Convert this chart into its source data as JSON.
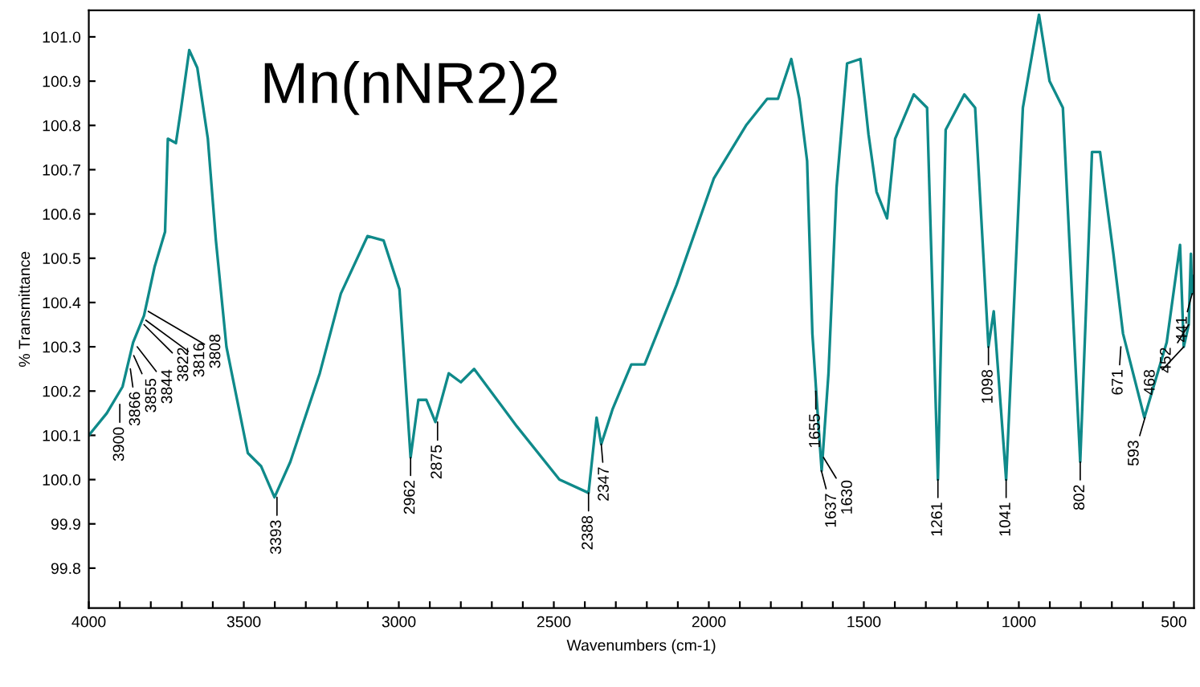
{
  "chart_data": {
    "type": "line",
    "title": "Mn(nNR2)2",
    "xlabel": "Wavenumbers (cm-1)",
    "ylabel": "% Transmittance",
    "xlim": [
      4000,
      435
    ],
    "ylim": [
      99.71,
      101.06
    ],
    "xticks": [
      4000,
      {
        "value": 3900,
        "label": null
      },
      {
        "value": 3800,
        "label": null
      },
      {
        "value": 3700,
        "label": null
      },
      {
        "value": 3600,
        "label": null
      },
      3500,
      {
        "value": 3400,
        "label": null
      },
      {
        "value": 3300,
        "label": null
      },
      {
        "value": 3200,
        "label": null
      },
      {
        "value": 3100,
        "label": null
      },
      3000,
      {
        "value": 2900,
        "label": null
      },
      {
        "value": 2800,
        "label": null
      },
      {
        "value": 2700,
        "label": null
      },
      {
        "value": 2600,
        "label": null
      },
      2500,
      {
        "value": 2400,
        "label": null
      },
      {
        "value": 2300,
        "label": null
      },
      {
        "value": 2200,
        "label": null
      },
      {
        "value": 2100,
        "label": null
      },
      2000,
      {
        "value": 1900,
        "label": null
      },
      {
        "value": 1800,
        "label": null
      },
      {
        "value": 1700,
        "label": null
      },
      {
        "value": 1600,
        "label": null
      },
      1500,
      {
        "value": 1400,
        "label": null
      },
      {
        "value": 1300,
        "label": null
      },
      {
        "value": 1200,
        "label": null
      },
      {
        "value": 1100,
        "label": null
      },
      1000,
      {
        "value": 900,
        "label": null
      },
      {
        "value": 800,
        "label": null
      },
      {
        "value": 700,
        "label": null
      },
      {
        "value": 600,
        "label": null
      },
      500
    ],
    "yticks": [
      {
        "value": 99.8,
        "label": "99.8"
      },
      {
        "value": 99.9,
        "label": "99.9"
      },
      {
        "value": 100.0,
        "label": "100.0"
      },
      {
        "value": 100.1,
        "label": "100.1"
      },
      {
        "value": 100.2,
        "label": "100.2"
      },
      {
        "value": 100.3,
        "label": "100.3"
      },
      {
        "value": 100.4,
        "label": "100.4"
      },
      {
        "value": 100.5,
        "label": "100.5"
      },
      {
        "value": 100.6,
        "label": "100.6"
      },
      {
        "value": 100.7,
        "label": "100.7"
      },
      {
        "value": 100.8,
        "label": "100.8"
      },
      {
        "value": 100.9,
        "label": "100.9"
      },
      {
        "value": 101.0,
        "label": "101.0"
      }
    ],
    "grid": false,
    "legend": false,
    "marker": "none",
    "line_style": "solid",
    "series": [
      {
        "color": "#0f8a8a",
        "x": [
          4000,
          3942,
          3891,
          3857,
          3822,
          3788,
          3754,
          3745,
          3719,
          3702,
          3676,
          3650,
          3616,
          3590,
          3556,
          3487,
          3444,
          3401,
          3350,
          3255,
          3187,
          3101,
          3049,
          2998,
          2962,
          2937,
          2911,
          2882,
          2839,
          2800,
          2757,
          2619,
          2482,
          2388,
          2362,
          2347,
          2310,
          2250,
          2207,
          2104,
          1984,
          1880,
          1812,
          1777,
          1734,
          1708,
          1683,
          1666,
          1648,
          1636,
          1614,
          1588,
          1554,
          1511,
          1485,
          1459,
          1425,
          1399,
          1339,
          1296,
          1261,
          1236,
          1176,
          1141,
          1098,
          1081,
          1041,
          987,
          935,
          901,
          858,
          802,
          764,
          738,
          695,
          664,
          595,
          523,
          480,
          468,
          452,
          445,
          441,
          437
        ],
        "values": [
          100.1,
          100.15,
          100.21,
          100.31,
          100.37,
          100.48,
          100.56,
          100.77,
          100.76,
          100.84,
          100.97,
          100.93,
          100.77,
          100.54,
          100.3,
          100.06,
          100.03,
          99.96,
          100.04,
          100.24,
          100.42,
          100.55,
          100.54,
          100.43,
          100.05,
          100.18,
          100.18,
          100.13,
          100.24,
          100.22,
          100.25,
          100.12,
          100.0,
          99.97,
          100.14,
          100.08,
          100.16,
          100.26,
          100.26,
          100.44,
          100.68,
          100.8,
          100.86,
          100.86,
          100.95,
          100.86,
          100.72,
          100.33,
          100.14,
          100.02,
          100.24,
          100.66,
          100.94,
          100.95,
          100.78,
          100.65,
          100.59,
          100.77,
          100.87,
          100.84,
          100.0,
          100.79,
          100.87,
          100.84,
          100.3,
          100.38,
          100.0,
          100.84,
          101.05,
          100.9,
          100.84,
          100.04,
          100.74,
          100.74,
          100.51,
          100.33,
          100.14,
          100.31,
          100.53,
          100.3,
          100.35,
          100.51,
          100.42,
          100.46
        ]
      }
    ],
    "annotations": [
      {
        "text": "3900",
        "x": 3900,
        "y": 100.17
      },
      {
        "text": "3866",
        "x": 3866,
        "y": 100.25
      },
      {
        "text": "3855",
        "x": 3855,
        "y": 100.28
      },
      {
        "text": "3844",
        "x": 3844,
        "y": 100.3
      },
      {
        "text": "3822",
        "x": 3822,
        "y": 100.35
      },
      {
        "text": "3816",
        "x": 3816,
        "y": 100.36
      },
      {
        "text": "3808",
        "x": 3808,
        "y": 100.38
      },
      {
        "text": "3393",
        "x": 3393,
        "y": 99.96
      },
      {
        "text": "2962",
        "x": 2962,
        "y": 100.05
      },
      {
        "text": "2875",
        "x": 2875,
        "y": 100.13
      },
      {
        "text": "2388",
        "x": 2388,
        "y": 99.97
      },
      {
        "text": "2347",
        "x": 2347,
        "y": 100.08
      },
      {
        "text": "1655",
        "x": 1655,
        "y": 100.2
      },
      {
        "text": "1637",
        "x": 1637,
        "y": 100.02
      },
      {
        "text": "1630",
        "x": 1630,
        "y": 100.05
      },
      {
        "text": "1261",
        "x": 1261,
        "y": 100.0
      },
      {
        "text": "1098",
        "x": 1098,
        "y": 100.3
      },
      {
        "text": "1041",
        "x": 1041,
        "y": 100.0
      },
      {
        "text": "802",
        "x": 802,
        "y": 100.04
      },
      {
        "text": "671",
        "x": 671,
        "y": 100.3
      },
      {
        "text": "593",
        "x": 593,
        "y": 100.14
      },
      {
        "text": "468",
        "x": 468,
        "y": 100.3
      },
      {
        "text": "452",
        "x": 452,
        "y": 100.35
      },
      {
        "text": "441",
        "x": 441,
        "y": 100.42
      }
    ]
  }
}
